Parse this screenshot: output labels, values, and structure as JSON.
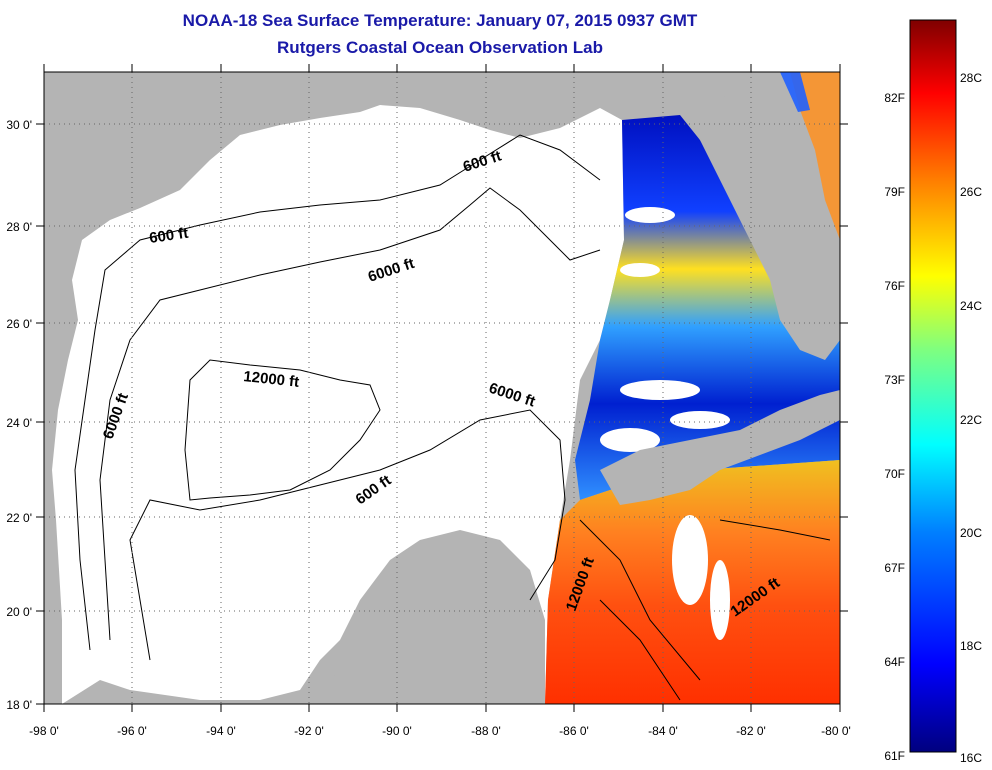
{
  "title_line1": "NOAA-18 Sea Surface Temperature:  January 07, 2015 0937 GMT",
  "title_line2": "Rutgers Coastal Ocean Observation Lab",
  "map": {
    "lon_range": [
      -98,
      -80
    ],
    "lat_range": [
      18,
      31
    ],
    "lon_ticks": [
      "-98 0'",
      "-96 0'",
      "-94 0'",
      "-92 0'",
      "-90 0'",
      "-88 0'",
      "-86 0'",
      "-84 0'",
      "-82 0'",
      "-80 0'"
    ],
    "lat_ticks": [
      "18 0'",
      "20 0'",
      "22 0'",
      "24 0'",
      "26 0'",
      "28 0'",
      "30 0'"
    ],
    "land_color": "#b4b4b4",
    "water_color": "#ffffff"
  },
  "contour_labels": [
    "600 ft",
    "600 ft",
    "600 ft",
    "6000 ft",
    "6000 ft",
    "6000 ft",
    "12000 ft",
    "12000 ft",
    "12000 ft"
  ],
  "colorbar": {
    "fahrenheit_labels": [
      "82F",
      "79F",
      "76F",
      "73F",
      "70F",
      "67F",
      "64F",
      "61F"
    ],
    "celsius_labels": [
      "28C",
      "26C",
      "24C",
      "22C",
      "20C",
      "18C",
      "16C"
    ],
    "colors": [
      "#00007f",
      "#0000ff",
      "#007fff",
      "#00ffff",
      "#7fff7f",
      "#ffff00",
      "#ff7f00",
      "#ff0000",
      "#7f0000"
    ]
  }
}
